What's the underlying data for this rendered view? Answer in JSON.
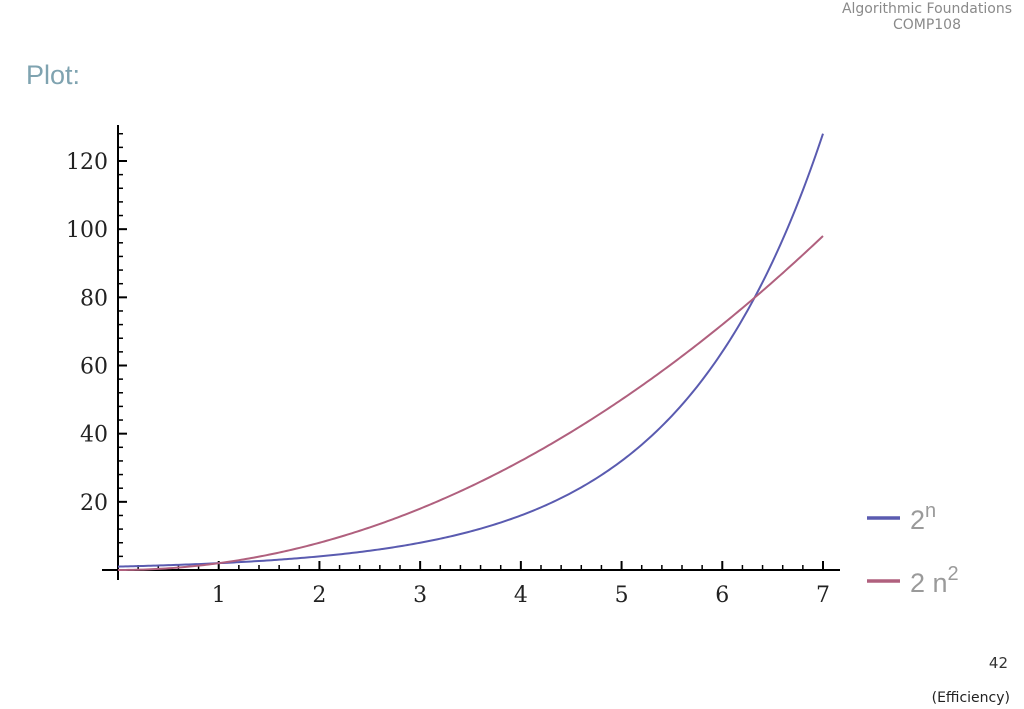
{
  "header": {
    "line1": "Algorithmic Foundations",
    "line2": "COMP108"
  },
  "slide": {
    "heading": "Plot:",
    "page_number": "42",
    "section": "(Efficiency)"
  },
  "chart_data": {
    "type": "line",
    "xlim": [
      0,
      7
    ],
    "ylim": [
      0,
      130
    ],
    "x_ticks": [
      1,
      2,
      3,
      4,
      5,
      6,
      7
    ],
    "y_ticks": [
      20,
      40,
      60,
      80,
      100,
      120
    ],
    "x_minor_step": 0.2,
    "y_minor_step": 4,
    "legend_position": "right",
    "series": [
      {
        "name": "2^n",
        "legend_base": "2",
        "legend_sup": "n",
        "color": "#5a5bb0",
        "function": "2^x",
        "x": [
          0,
          1,
          2,
          3,
          4,
          5,
          6,
          7
        ],
        "y": [
          1,
          2,
          4,
          8,
          16,
          32,
          64,
          128
        ]
      },
      {
        "name": "2n^2",
        "legend_base": "2 n",
        "legend_sup": "2",
        "color": "#b0607e",
        "function": "2*x^2",
        "x": [
          0,
          1,
          2,
          3,
          4,
          5,
          6,
          7
        ],
        "y": [
          0,
          2,
          8,
          18,
          32,
          50,
          72,
          98
        ]
      }
    ]
  }
}
